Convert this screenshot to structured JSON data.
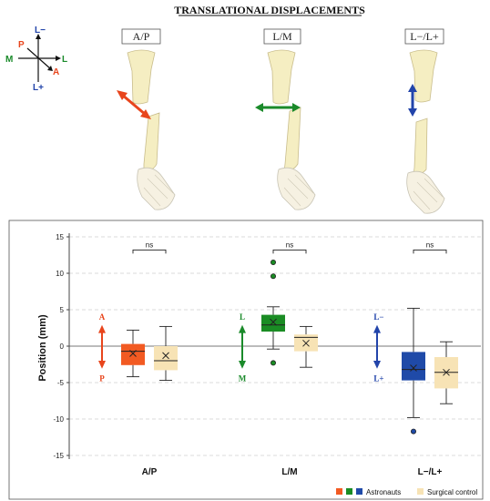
{
  "header": {
    "title": "TRANSLATIONAL DISPLACEMENTS"
  },
  "axes_key": {
    "top": "L−",
    "bottom": "L+",
    "left": "M",
    "right": "L",
    "upper_left": "P",
    "lower_right": "A",
    "colors": {
      "L": "#2244aa",
      "M": "#1a8a2a",
      "A": "#e8451c"
    }
  },
  "panels": [
    {
      "label": "A/P",
      "arrow_color": "#e8451c",
      "arrow_icon": "diagonal-double-arrow-icon"
    },
    {
      "label": "L/M",
      "arrow_color": "#1a8a2a",
      "arrow_icon": "horizontal-double-arrow-icon"
    },
    {
      "label": "L−/L+",
      "arrow_color": "#2244aa",
      "arrow_icon": "vertical-double-arrow-icon"
    }
  ],
  "chart_data": {
    "type": "box",
    "ylabel": "Position (mm)",
    "ylim": [
      -15,
      15
    ],
    "yticks": [
      -15,
      -10,
      -5,
      0,
      5,
      10,
      15
    ],
    "grid": "dashed horizontal",
    "categories": [
      "A/P",
      "L/M",
      "L−/L+"
    ],
    "significance": [
      "ns",
      "ns",
      "ns"
    ],
    "direction_labels": [
      {
        "top": "A",
        "bottom": "P",
        "color": "#e8451c"
      },
      {
        "top": "L",
        "bottom": "M",
        "color": "#1a8a2a"
      },
      {
        "top": "L−",
        "bottom": "L+",
        "color": "#2244aa"
      }
    ],
    "series": [
      {
        "name": "Astronauts",
        "colors": [
          "#f25a22",
          "#1a8c24",
          "#1f4aa8"
        ],
        "boxes": [
          {
            "whisker_low": -4.2,
            "q1": -2.6,
            "median": -0.7,
            "q3": 0.3,
            "whisker_high": 2.2,
            "mean": -1.0,
            "outliers": []
          },
          {
            "whisker_low": -0.4,
            "q1": 2.0,
            "median": 2.9,
            "q3": 4.3,
            "whisker_high": 5.4,
            "mean": 3.3,
            "outliers": [
              11.5,
              9.6,
              -2.3
            ]
          },
          {
            "whisker_low": -9.8,
            "q1": -4.7,
            "median": -3.2,
            "q3": -0.8,
            "whisker_high": 5.2,
            "mean": -3.0,
            "outliers": [
              -11.7
            ]
          }
        ]
      },
      {
        "name": "Surgical control",
        "colors": [
          "#f7e3b5",
          "#f7e3b5",
          "#f7e3b5"
        ],
        "boxes": [
          {
            "whisker_low": -4.7,
            "q1": -3.3,
            "median": -2.0,
            "q3": 0.0,
            "whisker_high": 2.7,
            "mean": -1.3,
            "outliers": []
          },
          {
            "whisker_low": -2.9,
            "q1": -0.7,
            "median": 1.2,
            "q3": 1.6,
            "whisker_high": 2.7,
            "mean": 0.4,
            "outliers": []
          },
          {
            "whisker_low": -7.9,
            "q1": -5.8,
            "median": -3.6,
            "q3": -1.5,
            "whisker_high": 0.6,
            "mean": -3.6,
            "outliers": []
          }
        ]
      }
    ],
    "legend": {
      "placement": "bottom-right",
      "entries": [
        "Astronauts",
        "Surgical control"
      ]
    }
  }
}
